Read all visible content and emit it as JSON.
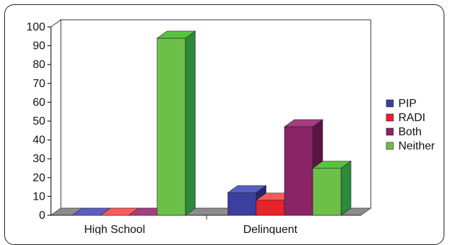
{
  "chart_data": {
    "type": "bar",
    "categories": [
      "High School",
      "Delinquent"
    ],
    "series": [
      {
        "name": "PIP",
        "values": [
          0,
          12
        ],
        "color": "#3b3fa0",
        "top": "#5a5ec4",
        "side": "#24276e"
      },
      {
        "name": "RADI",
        "values": [
          0,
          8
        ],
        "color": "#e8232a",
        "top": "#ff5a5a",
        "side": "#a31217"
      },
      {
        "name": "Both",
        "values": [
          0,
          47
        ],
        "color": "#8a2466",
        "top": "#a63d83",
        "side": "#5a1442"
      },
      {
        "name": "Neither",
        "values": [
          94,
          25
        ],
        "color": "#6cc04a",
        "top": "#58c43c",
        "side": "#2d8a3a"
      }
    ],
    "ylim": [
      0,
      100
    ],
    "yticks": [
      0,
      10,
      20,
      30,
      40,
      50,
      60,
      70,
      80,
      90,
      100
    ],
    "legend_position": "right",
    "grid": false,
    "style": "3d-clustered-column"
  }
}
